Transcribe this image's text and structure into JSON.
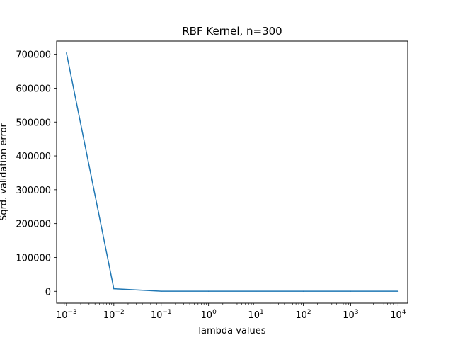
{
  "chart_data": {
    "type": "line",
    "title": "RBF Kernel, n=300",
    "xlabel": "lambda values",
    "ylabel": "Sqrd. validation error",
    "xscale": "log",
    "grid": false,
    "legend": "none",
    "x": [
      0.001,
      0.01,
      0.1,
      1,
      10,
      100,
      1000,
      10000
    ],
    "series": [
      {
        "values": [
          704000,
          7500,
          300,
          200,
          200,
          200,
          200,
          200
        ],
        "color": "#1f77b4"
      }
    ],
    "xlim": [
      0.00062,
      16000
    ],
    "ylim": [
      -35000,
      739000
    ],
    "xticks": [
      {
        "value": 0.001,
        "base": "10",
        "exp": "−3"
      },
      {
        "value": 0.01,
        "base": "10",
        "exp": "−2"
      },
      {
        "value": 0.1,
        "base": "10",
        "exp": "−1"
      },
      {
        "value": 1,
        "base": "10",
        "exp": "0"
      },
      {
        "value": 10,
        "base": "10",
        "exp": "1"
      },
      {
        "value": 100,
        "base": "10",
        "exp": "2"
      },
      {
        "value": 1000,
        "base": "10",
        "exp": "3"
      },
      {
        "value": 10000,
        "base": "10",
        "exp": "4"
      }
    ],
    "yticks": [
      {
        "value": 0,
        "label": "0"
      },
      {
        "value": 100000,
        "label": "100000"
      },
      {
        "value": 200000,
        "label": "200000"
      },
      {
        "value": 300000,
        "label": "300000"
      },
      {
        "value": 400000,
        "label": "400000"
      },
      {
        "value": 500000,
        "label": "500000"
      },
      {
        "value": 600000,
        "label": "600000"
      },
      {
        "value": 700000,
        "label": "700000"
      }
    ]
  }
}
